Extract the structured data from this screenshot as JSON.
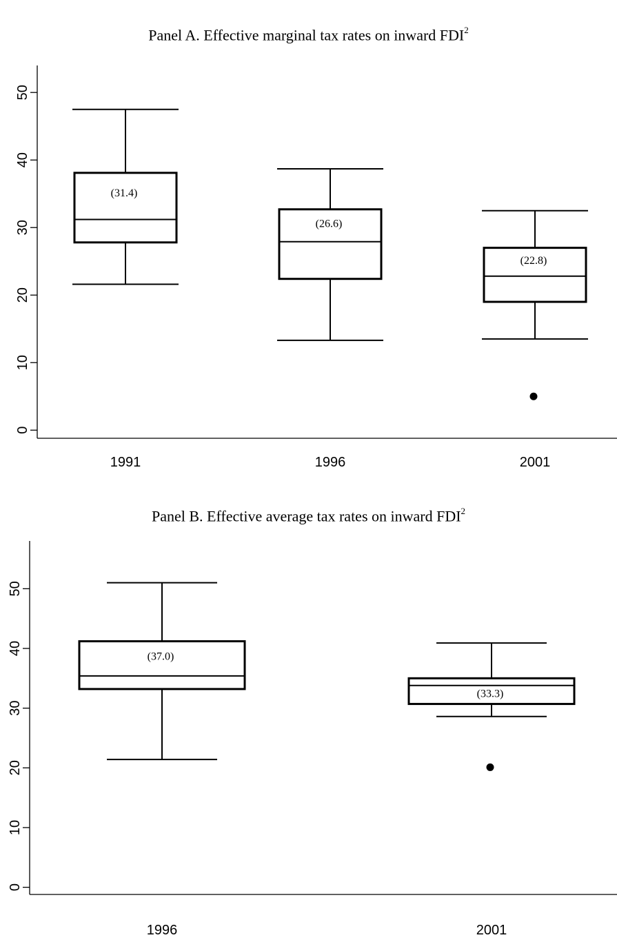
{
  "chart_data": [
    {
      "type": "box",
      "title": "Panel A. Effective marginal tax rates on inward FDI",
      "title_superscript": "2",
      "categories": [
        "1991",
        "1996",
        "2001"
      ],
      "boxes": [
        {
          "category": "1991",
          "whisker_low": 21.6,
          "q1": 27.8,
          "median": 31.2,
          "q3": 38.1,
          "whisker_high": 47.5,
          "mean_label": "(31.4)",
          "outliers": []
        },
        {
          "category": "1996",
          "whisker_low": 13.3,
          "q1": 22.4,
          "median": 27.9,
          "q3": 32.7,
          "whisker_high": 38.7,
          "mean_label": "(26.6)",
          "outliers": []
        },
        {
          "category": "2001",
          "whisker_low": 13.5,
          "q1": 19.0,
          "median": 22.8,
          "q3": 27.0,
          "whisker_high": 32.5,
          "mean_label": "(22.8)",
          "outliers": [
            5.0
          ]
        }
      ],
      "y_ticks": [
        0,
        10,
        20,
        30,
        40,
        50
      ],
      "ylim": [
        -1.2,
        54
      ],
      "grid": false
    },
    {
      "type": "box",
      "title": "Panel B. Effective average tax rates on inward FDI",
      "title_superscript": "2",
      "categories": [
        "1996",
        "2001"
      ],
      "boxes": [
        {
          "category": "1996",
          "whisker_low": 21.4,
          "q1": 33.2,
          "median": 35.4,
          "q3": 41.2,
          "whisker_high": 51.0,
          "mean_label": "(37.0)",
          "outliers": []
        },
        {
          "category": "2001",
          "whisker_low": 28.6,
          "q1": 30.7,
          "median": 33.8,
          "q3": 35.0,
          "whisker_high": 40.9,
          "mean_label": "(33.3)",
          "outliers": [
            20.1
          ]
        }
      ],
      "y_ticks": [
        0,
        10,
        20,
        30,
        40,
        50
      ],
      "ylim": [
        -1.2,
        58
      ],
      "grid": false
    }
  ]
}
